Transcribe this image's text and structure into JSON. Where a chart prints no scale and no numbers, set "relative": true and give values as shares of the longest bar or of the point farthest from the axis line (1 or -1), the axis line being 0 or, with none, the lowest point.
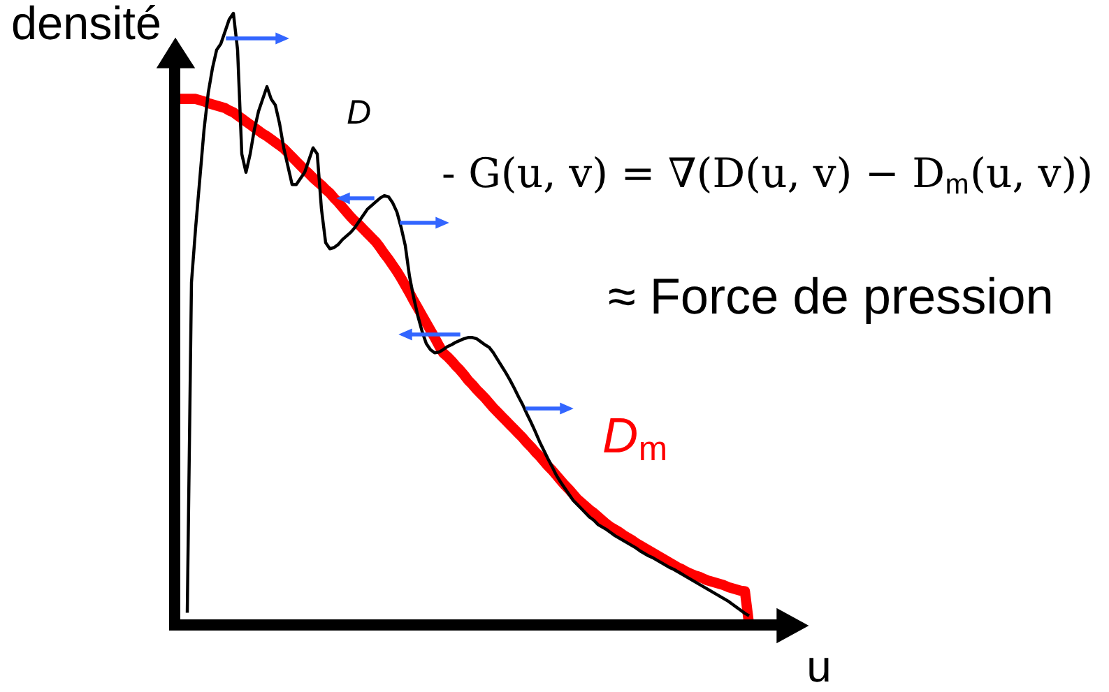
{
  "chart_data": {
    "type": "line",
    "xlabel": "u",
    "ylabel": "densité",
    "relative": true,
    "categories": [
      null,
      null,
      null,
      null,
      null,
      null,
      null,
      null,
      null,
      null,
      null,
      null,
      null,
      null,
      null,
      null,
      null,
      null,
      null,
      null,
      null,
      null,
      null,
      null,
      null,
      null,
      null,
      null,
      null,
      null,
      null,
      null,
      null,
      null,
      null,
      null,
      null,
      null,
      null,
      null,
      null,
      null,
      null,
      null,
      null,
      null,
      null,
      null,
      null,
      null,
      null,
      null,
      null,
      null,
      null,
      null,
      null,
      null,
      null,
      null,
      null,
      null,
      null,
      null,
      null,
      null,
      null,
      null,
      null,
      null,
      null,
      null,
      null,
      null,
      null,
      null,
      null,
      null,
      null,
      null,
      null,
      null,
      null,
      null,
      null,
      null,
      null,
      null,
      null,
      null,
      null,
      null,
      null,
      null,
      null,
      null,
      null,
      null,
      null,
      null,
      null,
      null,
      null,
      null,
      null,
      null,
      null,
      null,
      null,
      null,
      null,
      null,
      null,
      null,
      null,
      null,
      null,
      null,
      null,
      null,
      null,
      null,
      null,
      null,
      null,
      null,
      null,
      null,
      null,
      null,
      null,
      null,
      null,
      null,
      null,
      null,
      null,
      null
    ],
    "series": [
      {
        "name": "D$_{m}$",
        "color": "#ff0000",
        "values": [
          0.86,
          0.86,
          0.86,
          0.86,
          0.86,
          0.86,
          0.858,
          0.856,
          0.853,
          0.851,
          0.849,
          0.847,
          0.845,
          0.841,
          0.838,
          0.833,
          0.828,
          0.823,
          0.818,
          0.813,
          0.808,
          0.803,
          0.799,
          0.794,
          0.789,
          0.784,
          0.779,
          0.772,
          0.765,
          0.758,
          0.751,
          0.744,
          0.738,
          0.731,
          0.725,
          0.719,
          0.712,
          0.706,
          0.698,
          0.691,
          0.683,
          0.675,
          0.667,
          0.66,
          0.654,
          0.647,
          0.64,
          0.633,
          0.626,
          0.617,
          0.607,
          0.598,
          0.588,
          0.578,
          0.567,
          0.555,
          0.543,
          0.53,
          0.518,
          0.506,
          0.494,
          0.482,
          0.47,
          0.457,
          0.445,
          0.439,
          0.432,
          0.424,
          0.417,
          0.409,
          0.4,
          0.393,
          0.385,
          0.378,
          0.371,
          0.363,
          0.355,
          0.348,
          0.341,
          0.334,
          0.327,
          0.32,
          0.313,
          0.306,
          0.298,
          0.291,
          0.283,
          0.276,
          0.268,
          0.26,
          0.253,
          0.245,
          0.237,
          0.229,
          0.222,
          0.214,
          0.206,
          0.2,
          0.194,
          0.188,
          0.183,
          0.177,
          0.171,
          0.165,
          0.16,
          0.156,
          0.152,
          0.147,
          0.143,
          0.139,
          0.134,
          0.13,
          0.126,
          0.122,
          0.118,
          0.114,
          0.11,
          0.106,
          0.102,
          0.098,
          0.094,
          0.091,
          0.087,
          0.084,
          0.081,
          0.079,
          0.076,
          0.073,
          0.071,
          0.069,
          0.067,
          0.065,
          0.062,
          0.06,
          0.058,
          0.056,
          0.055,
          0
        ]
      },
      {
        "name": "D",
        "color": "#000000",
        "values": [
          null,
          null,
          null,
          0.02,
          0.56,
          0.65,
          0.73,
          0.81,
          0.87,
          0.91,
          0.94,
          0.95,
          0.97,
          0.99,
          1.0,
          0.94,
          0.77,
          0.74,
          0.77,
          0.81,
          0.84,
          0.86,
          0.88,
          0.86,
          0.85,
          0.82,
          0.78,
          0.75,
          0.72,
          0.72,
          0.73,
          0.74,
          0.76,
          0.78,
          0.77,
          0.68,
          0.625,
          0.615,
          0.617,
          0.622,
          0.63,
          0.636,
          0.642,
          0.65,
          0.66,
          0.67,
          0.68,
          0.686,
          0.692,
          0.698,
          0.702,
          0.7,
          0.69,
          0.675,
          0.65,
          0.62,
          0.57,
          0.535,
          0.505,
          0.48,
          0.46,
          0.45,
          0.445,
          0.446,
          0.45,
          0.455,
          0.458,
          0.462,
          0.465,
          0.468,
          0.47,
          0.47,
          0.468,
          0.463,
          0.458,
          0.454,
          0.445,
          0.434,
          0.423,
          0.412,
          0.4,
          0.387,
          0.373,
          0.36,
          0.345,
          0.331,
          0.316,
          0.3,
          0.286,
          0.272,
          0.259,
          0.245,
          0.234,
          0.224,
          0.214,
          0.204,
          0.197,
          0.19,
          0.183,
          0.176,
          0.171,
          0.164,
          0.16,
          0.156,
          0.151,
          0.146,
          0.142,
          0.138,
          0.134,
          0.13,
          0.126,
          0.121,
          0.117,
          0.113,
          0.11,
          0.106,
          0.102,
          0.098,
          0.094,
          0.091,
          0.087,
          0.083,
          0.079,
          0.075,
          0.071,
          0.067,
          0.063,
          0.059,
          0.055,
          0.051,
          0.047,
          0.043,
          0.039,
          0.034,
          0.029,
          0.024,
          0.019,
          0.015
        ]
      }
    ],
    "annotations": [
      "- G(u, v) = ∇(D(u, v) − D$_{m}$(u, v))",
      "≈ Force de pression"
    ]
  }
}
